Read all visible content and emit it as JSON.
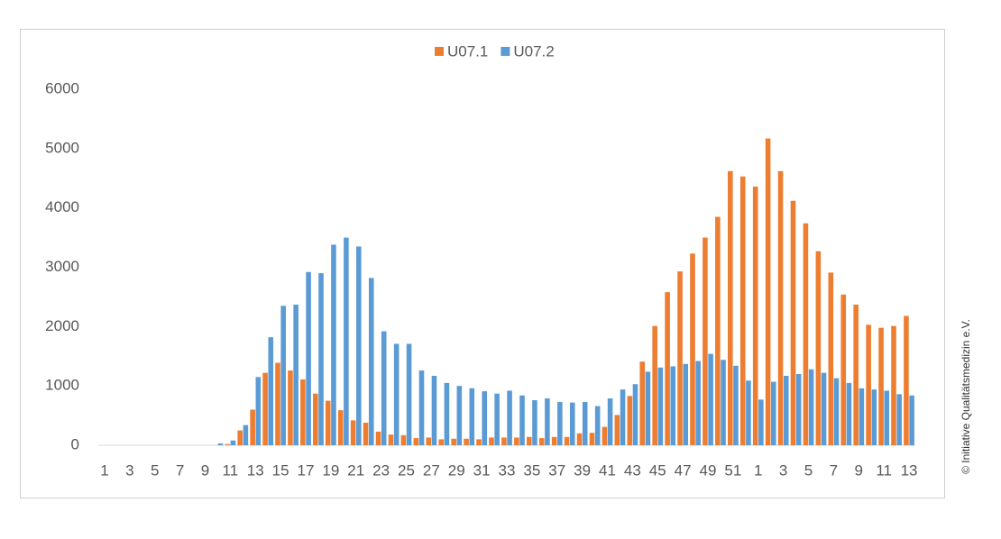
{
  "chart_data": {
    "type": "bar",
    "categories": [
      "1",
      null,
      "3",
      null,
      "5",
      null,
      "7",
      null,
      "9",
      null,
      "11",
      null,
      "13",
      null,
      "15",
      null,
      "17",
      null,
      "19",
      null,
      "21",
      null,
      "23",
      null,
      "25",
      null,
      "27",
      null,
      "29",
      null,
      "31",
      null,
      "33",
      null,
      "35",
      null,
      "37",
      null,
      "39",
      null,
      "41",
      null,
      "43",
      null,
      "45",
      null,
      "47",
      null,
      "49",
      null,
      "51",
      null,
      "1",
      null,
      "3",
      null,
      "5",
      null,
      "7",
      null,
      "9",
      null,
      "11",
      null,
      "13"
    ],
    "series": [
      {
        "name": "U07.1",
        "color": "#ed7d31",
        "values": [
          0,
          0,
          0,
          0,
          0,
          0,
          0,
          0,
          0,
          0,
          20,
          250,
          600,
          1220,
          1390,
          1260,
          1110,
          870,
          750,
          590,
          420,
          380,
          230,
          180,
          170,
          120,
          130,
          100,
          110,
          110,
          100,
          130,
          130,
          130,
          140,
          120,
          140,
          140,
          200,
          210,
          310,
          510,
          830,
          1410,
          2010,
          2580,
          2930,
          3230,
          3500,
          3850,
          4620,
          4530,
          4360,
          5170,
          4620,
          4120,
          3740,
          3270,
          2910,
          2540,
          2370,
          2030,
          1980,
          2010,
          2180
        ]
      },
      {
        "name": "U07.2",
        "color": "#5b9bd5",
        "values": [
          0,
          0,
          0,
          0,
          0,
          0,
          0,
          0,
          0,
          30,
          80,
          340,
          1150,
          1820,
          2350,
          2370,
          2920,
          2900,
          3380,
          3500,
          3350,
          2820,
          1920,
          1710,
          1710,
          1260,
          1170,
          1050,
          1000,
          960,
          910,
          870,
          920,
          840,
          760,
          790,
          730,
          720,
          730,
          660,
          790,
          940,
          1030,
          1240,
          1310,
          1330,
          1370,
          1420,
          1540,
          1440,
          1340,
          1090,
          770,
          1070,
          1170,
          1200,
          1280,
          1220,
          1130,
          1050,
          960,
          940,
          920,
          860,
          840
        ]
      }
    ],
    "ylim": [
      0,
      6000
    ],
    "yticks": [
      0,
      1000,
      2000,
      3000,
      4000,
      5000,
      6000
    ],
    "grid": false,
    "legend": "top",
    "credit": "© Initiative Qualitätsmedizin e.V."
  }
}
